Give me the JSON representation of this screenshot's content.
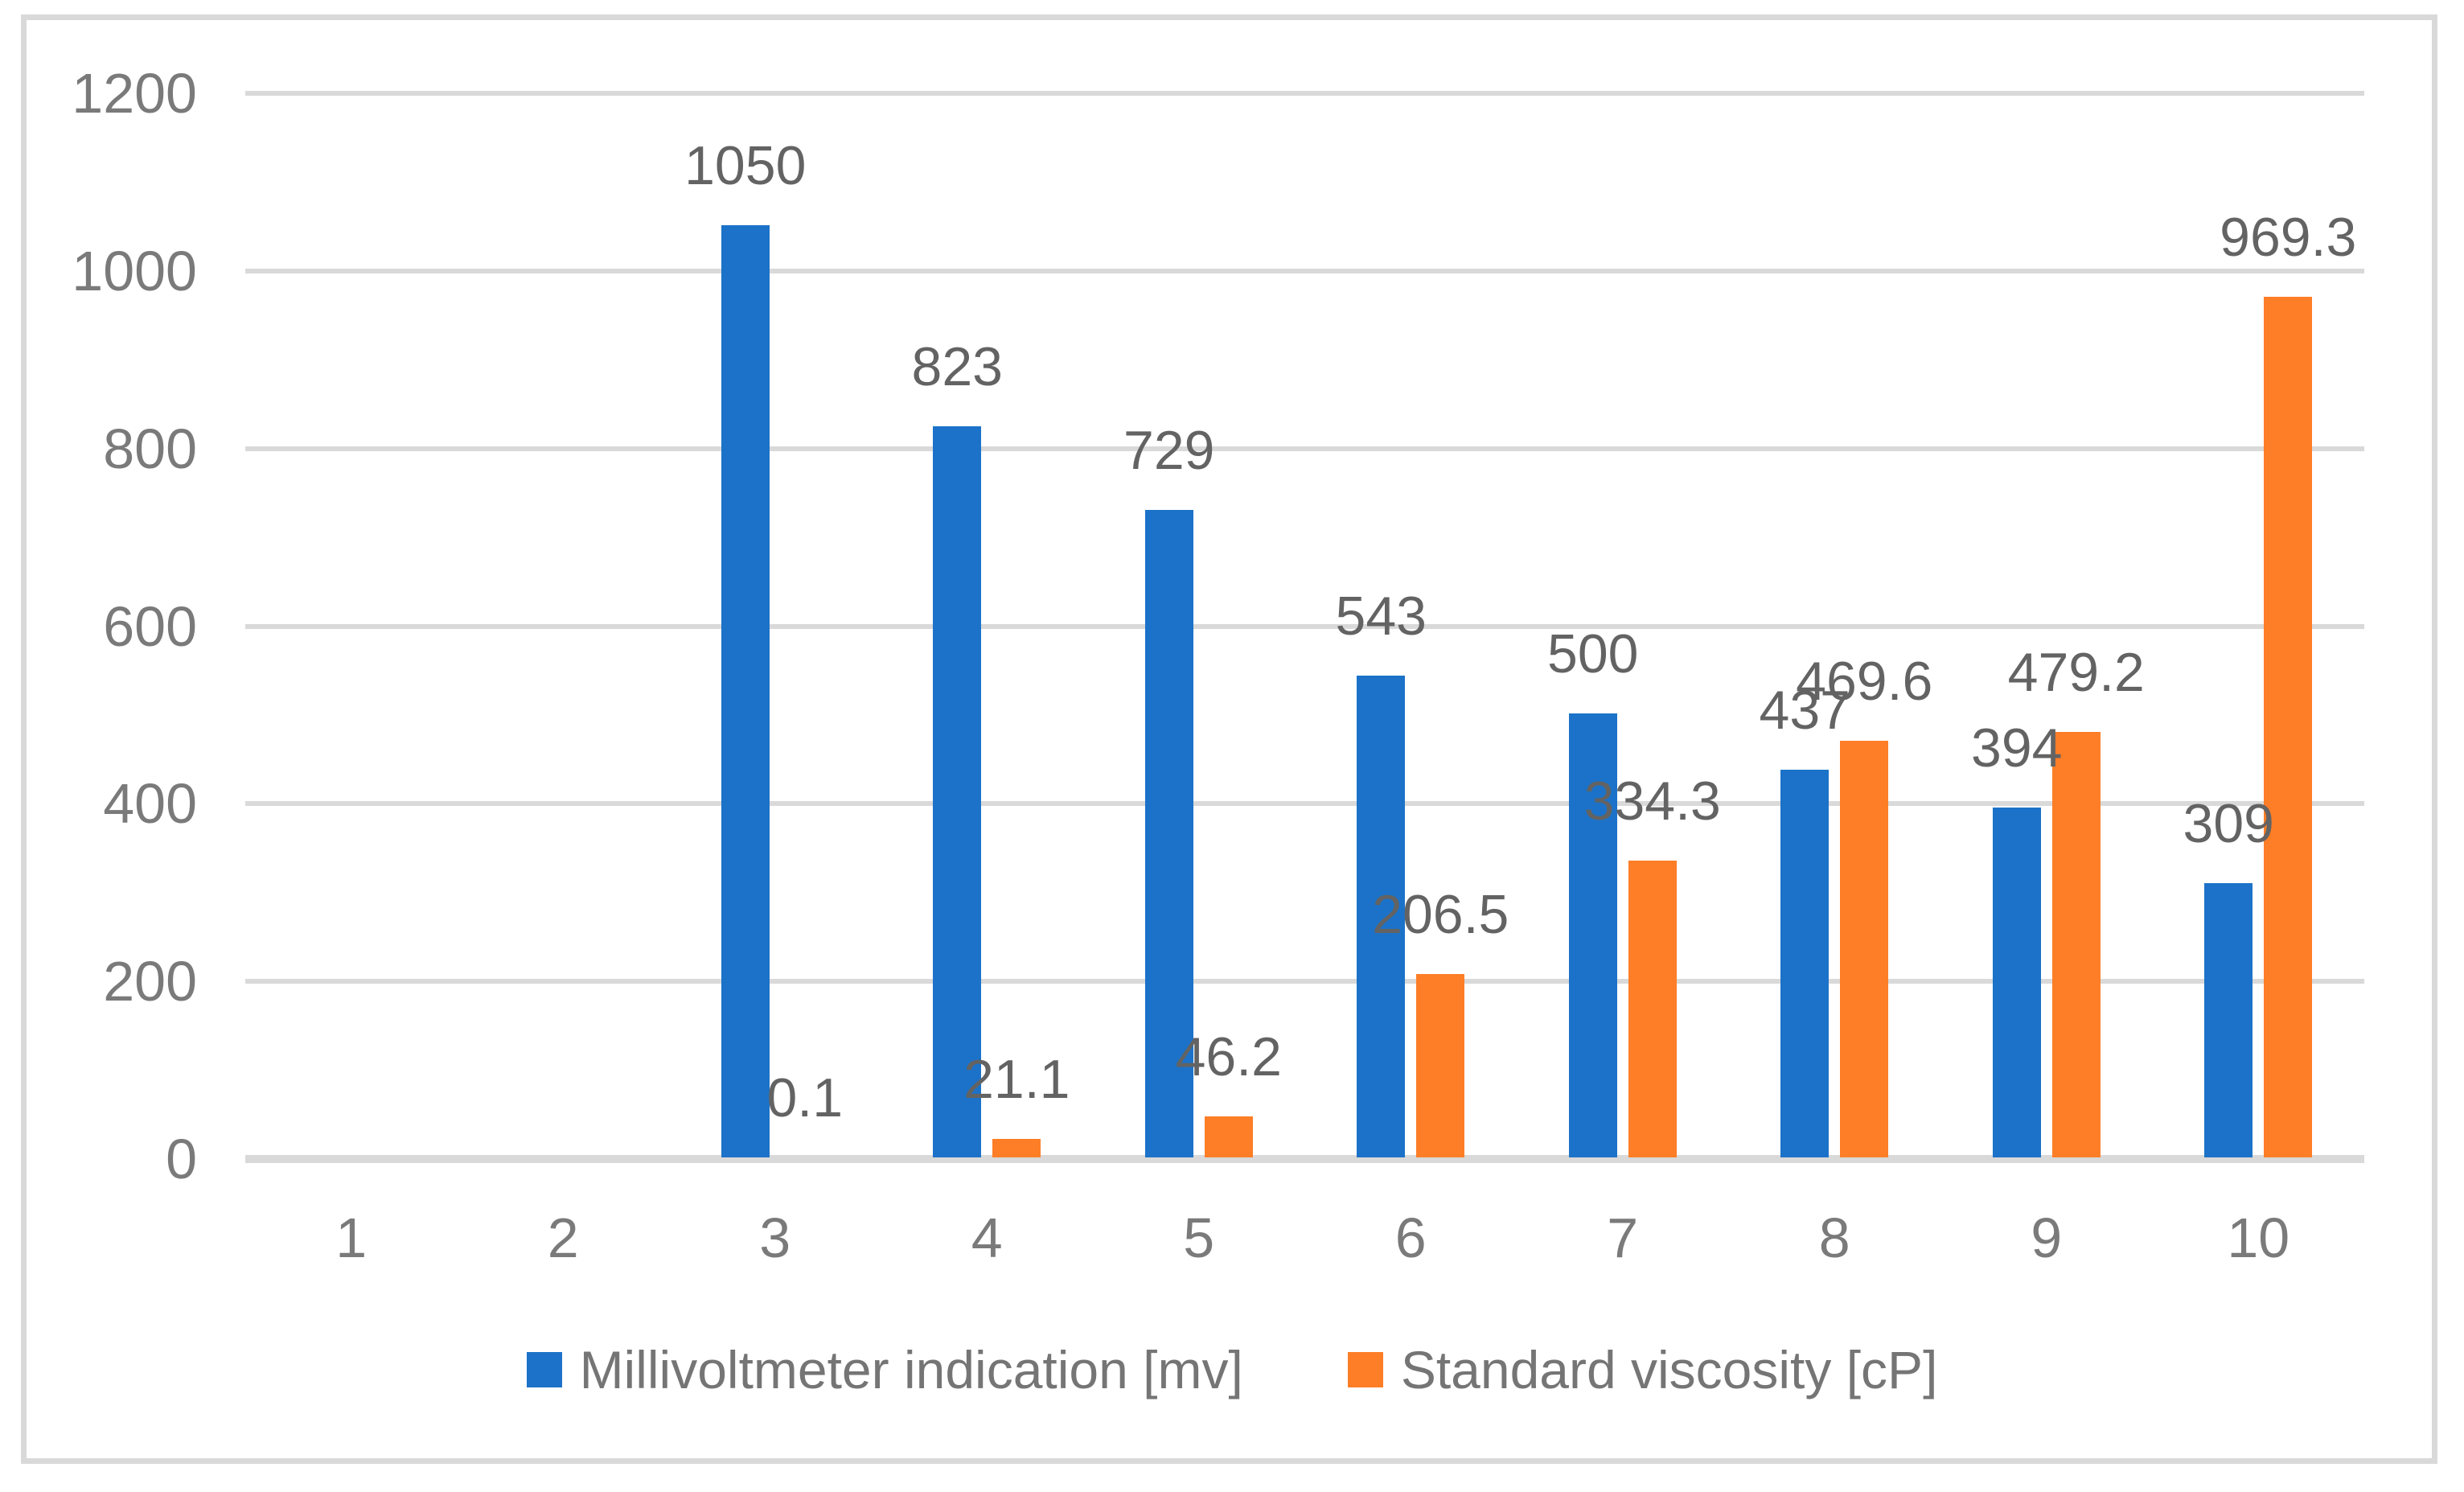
{
  "chart_data": {
    "type": "bar",
    "categories": [
      "1",
      "2",
      "3",
      "4",
      "5",
      "6",
      "7",
      "8",
      "9",
      "10"
    ],
    "series": [
      {
        "name": "Millivoltmeter indication [mv]",
        "color": "#1b72c8",
        "values": [
          null,
          null,
          1050,
          823,
          729,
          543,
          500,
          437,
          394,
          309
        ]
      },
      {
        "name": "Standard viscosity [cP]",
        "color": "#fd7e27",
        "values": [
          null,
          null,
          0.1,
          21.1,
          46.2,
          206.5,
          334.3,
          469.6,
          479.2,
          969.3
        ]
      }
    ],
    "title": "",
    "xlabel": "",
    "ylabel": "",
    "ylim": [
      0,
      1200
    ],
    "y_ticks": [
      0,
      200,
      400,
      600,
      800,
      1000,
      1200
    ],
    "grid": "horizontal",
    "legend_position": "bottom",
    "data_labels": true
  },
  "style": {
    "grid_color": "#d9d9d9",
    "axis_color": "#d9d9d9",
    "frame_color": "#d9d9d9",
    "tick_text_color": "#7a7a7a",
    "data_label_color": "#636363",
    "legend_text_color": "#757575",
    "background": "#ffffff"
  }
}
